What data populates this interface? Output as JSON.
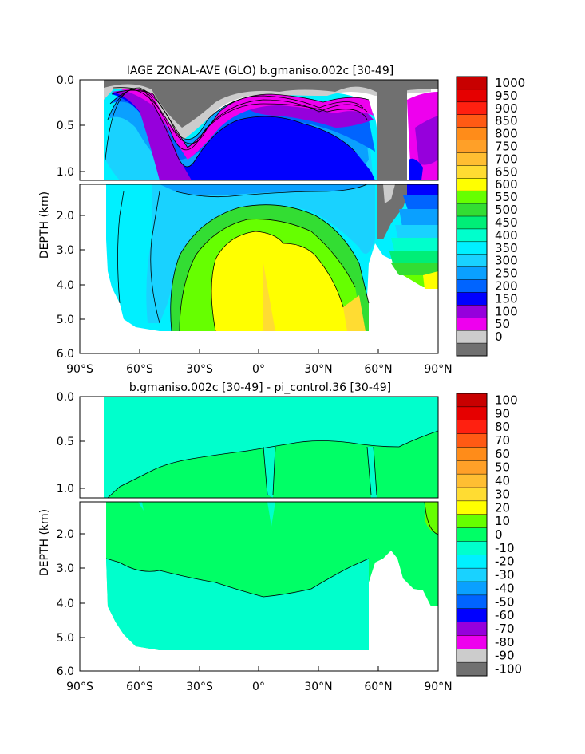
{
  "chart_data": [
    {
      "type": "heatmap",
      "title": "IAGE ZONAL-AVE (GLO) b.gmaniso.002c [30-49]",
      "ylabel": "DEPTH (km)",
      "xlabel": "",
      "x_ticks": [
        "90°S",
        "60°S",
        "30°S",
        "0°",
        "30°N",
        "60°N",
        "90°N"
      ],
      "y_ticks_upper": [
        "0.0",
        "0.5",
        "1.0"
      ],
      "y_ticks_lower": [
        "2.0",
        "3.0",
        "4.0",
        "5.0",
        "6.0"
      ],
      "xlim": [
        -90,
        90
      ],
      "ylim": [
        6.0,
        0.0
      ],
      "colorbar_labels": [
        "1000",
        "950",
        "900",
        "850",
        "800",
        "750",
        "700",
        "650",
        "600",
        "550",
        "500",
        "450",
        "400",
        "350",
        "300",
        "250",
        "200",
        "150",
        "100",
        "50",
        "0"
      ],
      "colorbar_colors": [
        "#c80000",
        "#e60000",
        "#ff2010",
        "#ff5a14",
        "#ff8c19",
        "#ffa028",
        "#ffbe32",
        "#ffdc32",
        "#ffff00",
        "#66ff00",
        "#33dd33",
        "#00ee77",
        "#00ffcc",
        "#00f0ff",
        "#19d2ff",
        "#0aa0ff",
        "#0064ff",
        "#0000ff",
        "#9600dc",
        "#ee00ee",
        "#cccccc",
        "#707070"
      ]
    },
    {
      "type": "heatmap",
      "title": "b.gmaniso.002c [30-49] - pi_control.36 [30-49]",
      "ylabel": "DEPTH (km)",
      "xlabel": "",
      "x_ticks": [
        "90°S",
        "60°S",
        "30°S",
        "0°",
        "30°N",
        "60°N",
        "90°N"
      ],
      "y_ticks_upper": [
        "0.0",
        "0.5",
        "1.0"
      ],
      "y_ticks_lower": [
        "2.0",
        "3.0",
        "4.0",
        "5.0",
        "6.0"
      ],
      "xlim": [
        -90,
        90
      ],
      "ylim": [
        6.0,
        0.0
      ],
      "colorbar_labels": [
        "100",
        "90",
        "80",
        "70",
        "60",
        "50",
        "40",
        "30",
        "20",
        "10",
        "0",
        "-10",
        "-20",
        "-30",
        "-40",
        "-50",
        "-60",
        "-70",
        "-80",
        "-90",
        "-100"
      ],
      "colorbar_colors": [
        "#c80000",
        "#e60000",
        "#ff2010",
        "#ff5a14",
        "#ff8c19",
        "#ffa028",
        "#ffbe32",
        "#ffdc32",
        "#ffff00",
        "#66ff00",
        "#00ff66",
        "#00ffcc",
        "#00f0ff",
        "#19d2ff",
        "#0aa0ff",
        "#0064ff",
        "#0000ff",
        "#9600dc",
        "#ee00ee",
        "#cccccc",
        "#707070"
      ]
    }
  ]
}
